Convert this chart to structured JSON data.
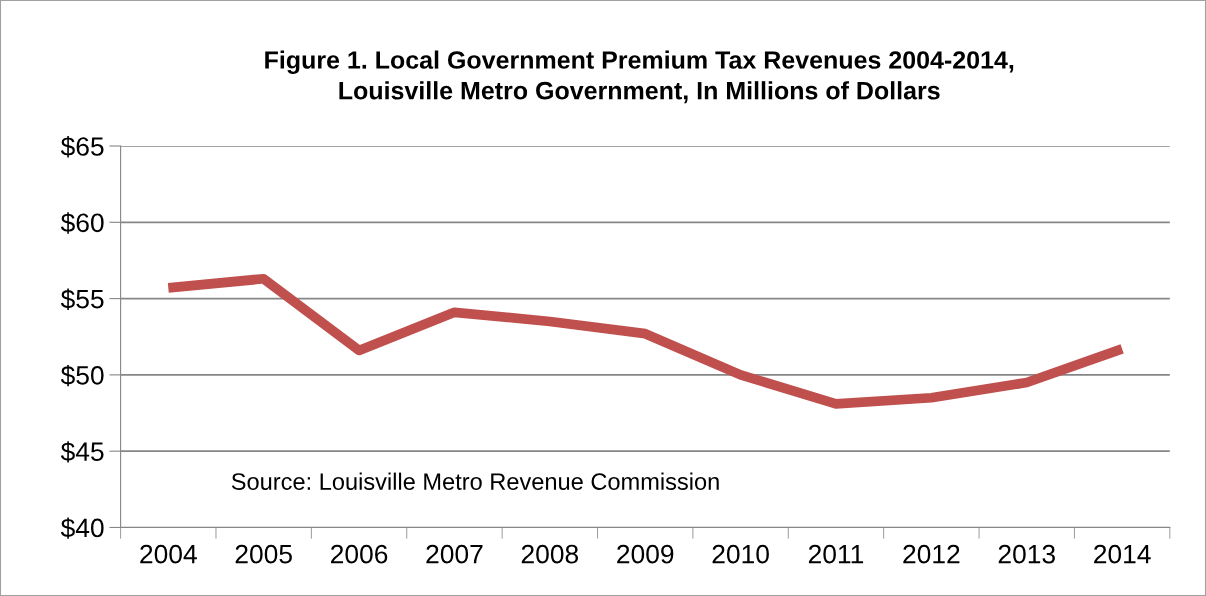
{
  "chart_data": {
    "type": "line",
    "title": "Figure 1. Local Government Premium Tax Revenues 2004-2014,\nLouisville Metro Government, In Millions of Dollars",
    "categories": [
      "2004",
      "2005",
      "2006",
      "2007",
      "2008",
      "2009",
      "2010",
      "2011",
      "2012",
      "2013",
      "2014"
    ],
    "series": [
      {
        "color": "#c0504d",
        "values": [
          55.7,
          56.3,
          51.6,
          54.1,
          53.5,
          52.7,
          50.0,
          48.1,
          48.5,
          49.5,
          51.7
        ]
      }
    ],
    "ylim": [
      40,
      65
    ],
    "yticks": [
      {
        "value": 40,
        "label": "$40"
      },
      {
        "value": 45,
        "label": "$45"
      },
      {
        "value": 50,
        "label": "$50"
      },
      {
        "value": 55,
        "label": "$55"
      },
      {
        "value": 60,
        "label": "$60"
      },
      {
        "value": 65,
        "label": "$65"
      }
    ],
    "grid": "y",
    "legend": false,
    "marker": "none",
    "line_style": "solid",
    "annotations": [
      "Source: Louisville Metro Revenue Commission"
    ]
  }
}
